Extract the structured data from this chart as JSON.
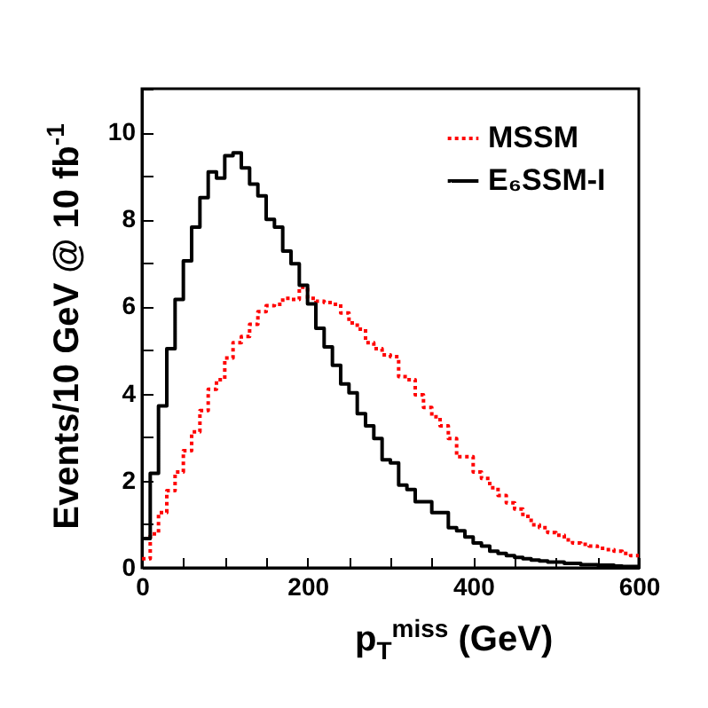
{
  "chart_data": {
    "type": "histogram",
    "xlabel": "p$_{T}$$^{miss}$ (GeV)",
    "ylabel": "Events/10 GeV @ 10 fb$^{-1}$",
    "bins": [
      0,
      10,
      20,
      30,
      40,
      50,
      60,
      70,
      80,
      90,
      100,
      110,
      120,
      130,
      140,
      150,
      160,
      170,
      180,
      190,
      200,
      210,
      220,
      230,
      240,
      250,
      260,
      270,
      280,
      290,
      300,
      310,
      320,
      330,
      340,
      350,
      360,
      370,
      380,
      390,
      400,
      410,
      420,
      430,
      440,
      450,
      460,
      470,
      480,
      490,
      500,
      510,
      520,
      530,
      540,
      550,
      560,
      570,
      580,
      590,
      600
    ],
    "series": [
      {
        "name": "MSSM",
        "color": "#ff0000",
        "line_style": "dotted",
        "values": [
          0.21,
          0.78,
          1.27,
          1.77,
          2.2,
          2.69,
          3.12,
          3.61,
          4.1,
          4.32,
          4.82,
          5.17,
          5.31,
          5.59,
          5.88,
          6.02,
          6.05,
          6.19,
          6.16,
          6.44,
          6.19,
          6.12,
          6.09,
          6.05,
          5.85,
          5.62,
          5.48,
          5.17,
          5.03,
          4.89,
          4.85,
          4.39,
          4.32,
          3.97,
          3.68,
          3.47,
          3.26,
          2.97,
          2.55,
          2.55,
          2.2,
          2.05,
          1.84,
          1.66,
          1.49,
          1.35,
          1.18,
          0.99,
          0.92,
          0.81,
          0.75,
          0.64,
          0.57,
          0.54,
          0.5,
          0.45,
          0.42,
          0.38,
          0.33,
          0.28
        ]
      },
      {
        "name": "E₆SSM-I",
        "color": "#000000",
        "line_style": "solid",
        "values": [
          0.67,
          2.17,
          3.72,
          5.03,
          6.16,
          7.05,
          7.82,
          8.5,
          9.09,
          8.95,
          9.46,
          9.53,
          9.18,
          8.81,
          8.54,
          8.0,
          7.82,
          7.27,
          6.98,
          6.49,
          6.06,
          5.5,
          5.07,
          4.65,
          4.22,
          4.02,
          3.54,
          3.26,
          2.97,
          2.48,
          2.41,
          1.9,
          1.8,
          1.52,
          1.52,
          1.27,
          1.27,
          0.92,
          0.85,
          0.71,
          0.57,
          0.5,
          0.38,
          0.33,
          0.28,
          0.24,
          0.21,
          0.18,
          0.16,
          0.13,
          0.13,
          0.1,
          0.1,
          0.07,
          0.07,
          0.06,
          0.06,
          0.04,
          0.03,
          0.03
        ]
      }
    ],
    "xlim": [
      0,
      600
    ],
    "xticks": [
      0,
      {
        "value": 50,
        "label": null
      },
      {
        "value": 100,
        "label": null
      },
      {
        "value": 150,
        "label": null
      },
      200,
      {
        "value": 250,
        "label": null
      },
      {
        "value": 300,
        "label": null
      },
      {
        "value": 350,
        "label": null
      },
      400,
      {
        "value": 450,
        "label": null
      },
      {
        "value": 500,
        "label": null
      },
      {
        "value": 550,
        "label": null
      },
      600
    ],
    "ylim": [
      0,
      11
    ],
    "yticks": [
      0,
      {
        "value": 1,
        "label": null
      },
      2,
      {
        "value": 3,
        "label": null
      },
      4,
      {
        "value": 5,
        "label": null
      },
      6,
      {
        "value": 7,
        "label": null
      },
      8,
      {
        "value": 9,
        "label": null
      },
      10,
      {
        "value": 11,
        "label": null
      }
    ],
    "grid": false,
    "legend": "top right"
  }
}
